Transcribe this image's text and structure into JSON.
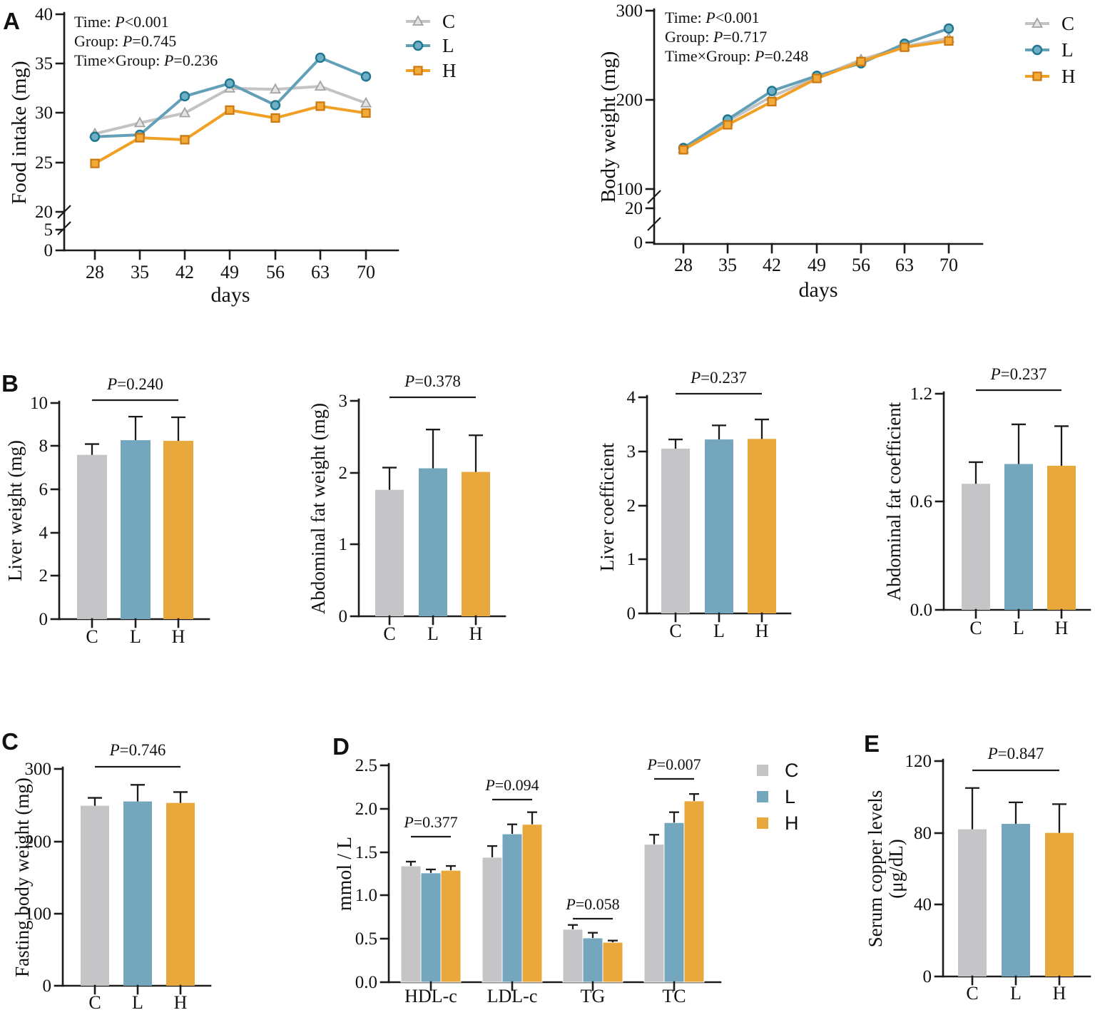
{
  "panels": {
    "a": "A",
    "b": "B",
    "c": "C",
    "d": "D",
    "e": "E"
  },
  "legend_labels": [
    "C",
    "L",
    "H"
  ],
  "colors": {
    "bar_c": "#c5c5c7",
    "bar_l": "#74a7bd",
    "bar_h": "#e9a83c",
    "line_c": "#c3c3c3",
    "line_l": "#63a0b8",
    "line_h": "#f0a125",
    "marker_stroke_c": "#a2a2a2",
    "marker_stroke_l": "#20768f",
    "marker_stroke_h": "#cc7811",
    "marker_fill_c": "#e4e4e4",
    "marker_fill_l": "#6db0c6",
    "marker_fill_h": "#f2ab38",
    "axis": "#1b1b1b"
  },
  "chart_data": [
    {
      "id": "food-intake",
      "type": "line",
      "panel": "A",
      "ylabel": "Food intake (mg)",
      "xlabel": "days",
      "x": [
        28,
        35,
        42,
        49,
        56,
        63,
        70
      ],
      "stats": [
        "Time: P<0.001",
        "Group: P=0.745",
        "Time×Group: P=0.236"
      ],
      "y_ticks": [
        "40",
        "35",
        "30",
        "25",
        "20",
        "5",
        "0"
      ],
      "ylim_linear": [
        20,
        40
      ],
      "axis_break": true,
      "legend": [
        "C",
        "L",
        "H"
      ],
      "series": [
        {
          "name": "C",
          "marker": "triangle",
          "values": [
            27.9,
            29.0,
            30.0,
            32.5,
            32.4,
            32.7,
            31.0
          ]
        },
        {
          "name": "L",
          "marker": "circle",
          "values": [
            27.6,
            27.8,
            31.7,
            33.0,
            30.8,
            35.6,
            33.7
          ]
        },
        {
          "name": "H",
          "marker": "square",
          "values": [
            24.9,
            27.5,
            27.3,
            30.3,
            29.5,
            30.7,
            30.0
          ]
        }
      ]
    },
    {
      "id": "body-weight",
      "type": "line",
      "panel": "A",
      "ylabel": "Body weight (mg)",
      "xlabel": "days",
      "x": [
        28,
        35,
        42,
        49,
        56,
        63,
        70
      ],
      "stats": [
        "Time: P<0.001",
        "Group: P=0.717",
        "Time×Group: P=0.248"
      ],
      "y_ticks": [
        "300",
        "200",
        "100",
        "20",
        "0"
      ],
      "ylim_linear": [
        100,
        300
      ],
      "axis_break": true,
      "legend": [
        "C",
        "L",
        "H"
      ],
      "series": [
        {
          "name": "C",
          "marker": "triangle",
          "values": [
            145,
            176,
            204,
            225,
            245,
            260,
            269
          ]
        },
        {
          "name": "L",
          "marker": "circle",
          "values": [
            146,
            178,
            210,
            227,
            241,
            263,
            280
          ]
        },
        {
          "name": "H",
          "marker": "square",
          "values": [
            144,
            172,
            198,
            224,
            243,
            259,
            266
          ]
        }
      ]
    },
    {
      "id": "liver-weight",
      "type": "bar",
      "panel": "B",
      "ylabel": "Liver weight (mg)",
      "p_label": "P=0.240",
      "categories": [
        "C",
        "L",
        "H"
      ],
      "values": [
        7.6,
        8.28,
        8.25
      ],
      "errors": [
        0.5,
        1.09,
        1.09
      ],
      "y_ticks": [
        "10",
        "8",
        "6",
        "4",
        "2",
        "0"
      ],
      "ylim": [
        0,
        10
      ]
    },
    {
      "id": "abdominal-fat-weight",
      "type": "bar",
      "panel": "B",
      "ylabel": "Abdominal fat weight (mg)",
      "p_label": "P=0.378",
      "categories": [
        "C",
        "L",
        "H"
      ],
      "values": [
        1.76,
        2.06,
        2.01
      ],
      "errors": [
        0.31,
        0.54,
        0.51
      ],
      "y_ticks": [
        "3",
        "2",
        "1",
        "0"
      ],
      "ylim": [
        0,
        3
      ]
    },
    {
      "id": "liver-coefficient",
      "type": "bar",
      "panel": "B",
      "ylabel": "Liver coefficient",
      "p_label": "P=0.237",
      "categories": [
        "C",
        "L",
        "H"
      ],
      "values": [
        3.05,
        3.22,
        3.23
      ],
      "errors": [
        0.17,
        0.26,
        0.36
      ],
      "y_ticks": [
        "4",
        "3",
        "2",
        "1",
        "0"
      ],
      "ylim": [
        0,
        4
      ]
    },
    {
      "id": "abdominal-fat-coefficient",
      "type": "bar",
      "panel": "B",
      "ylabel": "Abdominal fat coefficient",
      "p_label": "P=0.237",
      "categories": [
        "C",
        "L",
        "H"
      ],
      "values": [
        0.7,
        0.81,
        0.8
      ],
      "errors": [
        0.12,
        0.22,
        0.22
      ],
      "y_ticks": [
        "1.2",
        "0.6",
        "0.0"
      ],
      "ylim": [
        0,
        1.2
      ]
    },
    {
      "id": "fasting-body-weight",
      "type": "bar",
      "panel": "C",
      "ylabel": "Fasting body weight (mg)",
      "p_label": "P=0.746",
      "categories": [
        "C",
        "L",
        "H"
      ],
      "values": [
        249,
        255,
        253
      ],
      "errors": [
        11,
        23,
        15
      ],
      "y_ticks": [
        "300",
        "200",
        "100",
        "0"
      ],
      "ylim": [
        0,
        300
      ]
    },
    {
      "id": "serum-lipids",
      "type": "grouped_bar",
      "panel": "D",
      "ylabel": "mmol / L",
      "categories": [
        "HDL-c",
        "LDL-c",
        "TG",
        "TC"
      ],
      "p_labels": [
        "P=0.377",
        "P=0.094",
        "P=0.058",
        "P=0.007"
      ],
      "legend": [
        "C",
        "L",
        "H"
      ],
      "series": [
        {
          "name": "C",
          "values": [
            1.34,
            1.44,
            0.61,
            1.59
          ],
          "errors": [
            0.05,
            0.13,
            0.05,
            0.11
          ]
        },
        {
          "name": "L",
          "values": [
            1.26,
            1.71,
            0.51,
            1.84
          ],
          "errors": [
            0.04,
            0.11,
            0.06,
            0.12
          ]
        },
        {
          "name": "H",
          "values": [
            1.29,
            1.82,
            0.46,
            2.09
          ],
          "errors": [
            0.05,
            0.14,
            0.02,
            0.08
          ]
        }
      ],
      "y_ticks": [
        "2.5",
        "2.0",
        "1.5",
        "1.0",
        "0.5",
        "0.0"
      ],
      "ylim": [
        0,
        2.5
      ]
    },
    {
      "id": "serum-copper",
      "type": "bar",
      "panel": "E",
      "ylabel": "Serum copper levels",
      "ylabel2": "(μg/dL)",
      "p_label": "P=0.847",
      "categories": [
        "C",
        "L",
        "H"
      ],
      "values": [
        82,
        85,
        80
      ],
      "errors": [
        23,
        12,
        16
      ],
      "y_ticks": [
        "120",
        "80",
        "40",
        "0"
      ],
      "ylim": [
        0,
        120
      ]
    }
  ]
}
